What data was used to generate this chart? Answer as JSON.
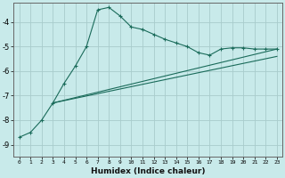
{
  "xlabel": "Humidex (Indice chaleur)",
  "ylabel": "",
  "bg_color": "#c8eaea",
  "grid_color": "#a8cccc",
  "line_color": "#1a6b5a",
  "xlim": [
    -0.5,
    23.5
  ],
  "ylim": [
    -9.5,
    -3.2
  ],
  "yticks": [
    -9,
    -8,
    -7,
    -6,
    -5,
    -4
  ],
  "xticks": [
    0,
    1,
    2,
    3,
    4,
    5,
    6,
    7,
    8,
    9,
    10,
    11,
    12,
    13,
    14,
    15,
    16,
    17,
    18,
    19,
    20,
    21,
    22,
    23
  ],
  "curve1_x": [
    0,
    1,
    2,
    3,
    4,
    5,
    6,
    7,
    8,
    9,
    10,
    11,
    12,
    13,
    14,
    15,
    16,
    17,
    18,
    19,
    20,
    21,
    22,
    23
  ],
  "curve1_y": [
    -8.7,
    -8.5,
    -8.0,
    -7.3,
    -6.5,
    -5.8,
    -5.0,
    -3.5,
    -3.4,
    -3.75,
    -4.2,
    -4.3,
    -4.5,
    -4.7,
    -4.85,
    -5.0,
    -5.25,
    -5.35,
    -5.1,
    -5.05,
    -5.05,
    -5.1,
    -5.1,
    -5.1
  ],
  "curve2_x": [
    3,
    23
  ],
  "curve2_y": [
    -7.3,
    -5.1
  ],
  "curve3_x": [
    3,
    23
  ],
  "curve3_y": [
    -7.3,
    -5.1
  ]
}
